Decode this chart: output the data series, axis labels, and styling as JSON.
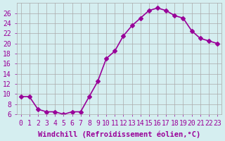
{
  "x": [
    0,
    1,
    2,
    3,
    4,
    5,
    6,
    7,
    8,
    9,
    10,
    11,
    12,
    13,
    14,
    15,
    16,
    17,
    18,
    19,
    20,
    21,
    22,
    23
  ],
  "y": [
    9.5,
    9.5,
    7.0,
    6.5,
    6.5,
    6.0,
    6.5,
    6.5,
    9.5,
    12.5,
    17.0,
    18.5,
    21.5,
    23.5,
    25.0,
    26.5,
    27.0,
    26.5,
    25.5,
    25.0,
    22.5,
    21.0,
    20.5,
    20.0
  ],
  "line_color": "#990099",
  "marker": "D",
  "marker_size": 3,
  "background_color": "#d5eef0",
  "grid_color": "#aaaaaa",
  "xlabel": "Windchill (Refroidissement éolien,°C)",
  "ylabel": "",
  "ylim": [
    6,
    28
  ],
  "xlim": [
    -0.5,
    23.5
  ],
  "yticks": [
    6,
    8,
    10,
    12,
    14,
    16,
    18,
    20,
    22,
    24,
    26
  ],
  "xtick_labels": [
    "0",
    "1",
    "2",
    "3",
    "4",
    "5",
    "6",
    "7",
    "8",
    "9",
    "10",
    "11",
    "12",
    "13",
    "14",
    "15",
    "16",
    "17",
    "18",
    "19",
    "20",
    "21",
    "22",
    "23"
  ],
  "font_color": "#990099",
  "tick_fontsize": 7,
  "xlabel_fontsize": 7.5
}
